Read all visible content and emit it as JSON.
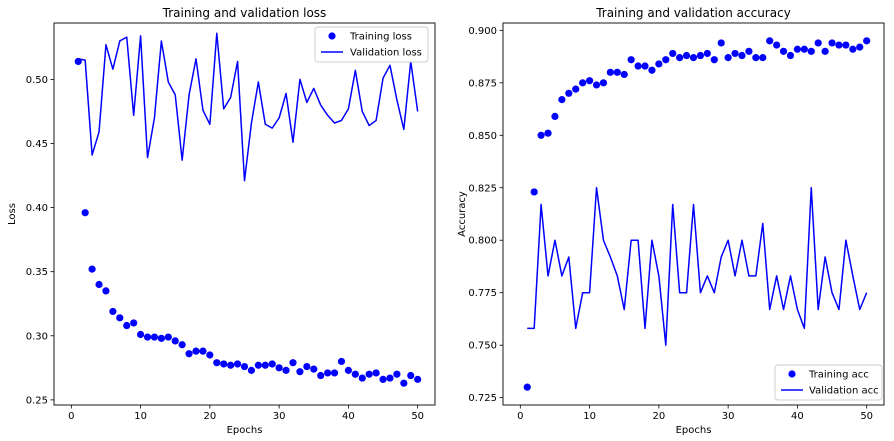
{
  "chart_data": [
    {
      "type": "line",
      "title": "Training and validation loss",
      "xlabel": "Epochs",
      "ylabel": "Loss",
      "xlim": [
        -2.5,
        52.5
      ],
      "ylim": [
        0.246,
        0.544
      ],
      "xticks": [
        0,
        10,
        20,
        30,
        40,
        50
      ],
      "yticks": [
        0.25,
        0.3,
        0.35,
        0.4,
        0.45,
        0.5
      ],
      "ytick_labels": [
        "0.25",
        "0.30",
        "0.35",
        "0.40",
        "0.45",
        "0.50"
      ],
      "legend_position": "top-right",
      "grid": false,
      "x": [
        1,
        2,
        3,
        4,
        5,
        6,
        7,
        8,
        9,
        10,
        11,
        12,
        13,
        14,
        15,
        16,
        17,
        18,
        19,
        20,
        21,
        22,
        23,
        24,
        25,
        26,
        27,
        28,
        29,
        30,
        31,
        32,
        33,
        34,
        35,
        36,
        37,
        38,
        39,
        40,
        41,
        42,
        43,
        44,
        45,
        46,
        47,
        48,
        49,
        50
      ],
      "series": [
        {
          "name": "Training loss",
          "style": "points",
          "color": "#0000ff",
          "values": [
            0.514,
            0.396,
            0.352,
            0.34,
            0.335,
            0.319,
            0.314,
            0.308,
            0.31,
            0.301,
            0.299,
            0.299,
            0.298,
            0.299,
            0.296,
            0.293,
            0.286,
            0.288,
            0.288,
            0.285,
            0.279,
            0.278,
            0.277,
            0.278,
            0.276,
            0.273,
            0.277,
            0.277,
            0.278,
            0.275,
            0.273,
            0.279,
            0.272,
            0.276,
            0.274,
            0.269,
            0.271,
            0.271,
            0.28,
            0.273,
            0.27,
            0.267,
            0.27,
            0.271,
            0.266,
            0.267,
            0.27,
            0.263,
            0.269,
            0.266
          ]
        },
        {
          "name": "Validation loss",
          "style": "line",
          "color": "#0000ff",
          "values": [
            0.516,
            0.515,
            0.441,
            0.459,
            0.527,
            0.508,
            0.53,
            0.533,
            0.472,
            0.534,
            0.439,
            0.47,
            0.53,
            0.498,
            0.488,
            0.437,
            0.488,
            0.516,
            0.476,
            0.465,
            0.536,
            0.477,
            0.486,
            0.514,
            0.421,
            0.466,
            0.498,
            0.465,
            0.462,
            0.47,
            0.489,
            0.451,
            0.5,
            0.482,
            0.493,
            0.48,
            0.472,
            0.466,
            0.468,
            0.477,
            0.507,
            0.475,
            0.464,
            0.468,
            0.501,
            0.511,
            0.484,
            0.461,
            0.514,
            0.475
          ]
        }
      ]
    },
    {
      "type": "line",
      "title": "Training and validation accuracy",
      "xlabel": "Epochs",
      "ylabel": "Accuracy",
      "xlim": [
        -2.5,
        52.5
      ],
      "ylim": [
        0.7215,
        0.9035
      ],
      "xticks": [
        0,
        10,
        20,
        30,
        40,
        50
      ],
      "yticks": [
        0.725,
        0.75,
        0.775,
        0.8,
        0.825,
        0.85,
        0.875,
        0.9
      ],
      "ytick_labels": [
        "0.725",
        "0.750",
        "0.775",
        "0.800",
        "0.825",
        "0.850",
        "0.875",
        "0.900"
      ],
      "legend_position": "bottom-right",
      "grid": false,
      "x": [
        1,
        2,
        3,
        4,
        5,
        6,
        7,
        8,
        9,
        10,
        11,
        12,
        13,
        14,
        15,
        16,
        17,
        18,
        19,
        20,
        21,
        22,
        23,
        24,
        25,
        26,
        27,
        28,
        29,
        30,
        31,
        32,
        33,
        34,
        35,
        36,
        37,
        38,
        39,
        40,
        41,
        42,
        43,
        44,
        45,
        46,
        47,
        48,
        49,
        50
      ],
      "series": [
        {
          "name": "Training acc",
          "style": "points",
          "color": "#0000ff",
          "values": [
            0.73,
            0.823,
            0.85,
            0.851,
            0.859,
            0.867,
            0.87,
            0.872,
            0.875,
            0.876,
            0.874,
            0.875,
            0.88,
            0.88,
            0.879,
            0.886,
            0.883,
            0.883,
            0.881,
            0.884,
            0.886,
            0.889,
            0.887,
            0.888,
            0.887,
            0.888,
            0.889,
            0.886,
            0.894,
            0.887,
            0.889,
            0.888,
            0.89,
            0.887,
            0.887,
            0.895,
            0.893,
            0.89,
            0.888,
            0.891,
            0.891,
            0.89,
            0.894,
            0.89,
            0.894,
            0.893,
            0.893,
            0.891,
            0.892,
            0.895
          ]
        },
        {
          "name": "Validation acc",
          "style": "line",
          "color": "#0000ff",
          "values": [
            0.758,
            0.758,
            0.817,
            0.783,
            0.8,
            0.783,
            0.792,
            0.758,
            0.775,
            0.775,
            0.825,
            0.8,
            0.792,
            0.783,
            0.767,
            0.8,
            0.8,
            0.758,
            0.8,
            0.783,
            0.75,
            0.817,
            0.775,
            0.775,
            0.817,
            0.775,
            0.783,
            0.775,
            0.792,
            0.8,
            0.783,
            0.8,
            0.783,
            0.783,
            0.808,
            0.767,
            0.783,
            0.767,
            0.783,
            0.767,
            0.758,
            0.825,
            0.767,
            0.792,
            0.775,
            0.767,
            0.8,
            0.783,
            0.767,
            0.775
          ]
        }
      ]
    }
  ]
}
